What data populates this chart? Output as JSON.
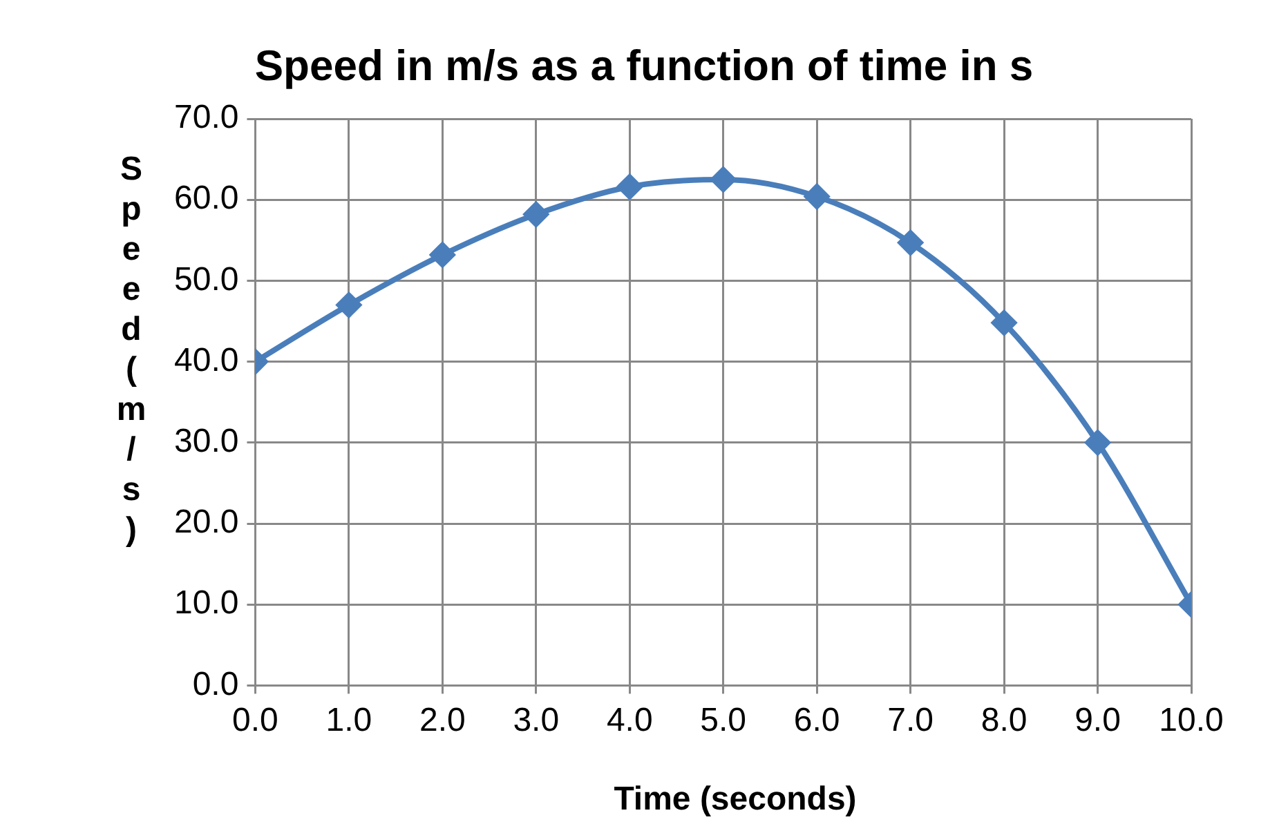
{
  "chart_data": {
    "type": "line",
    "title": "Speed in m/s as a function of time in s",
    "xlabel": "Time (seconds)",
    "ylabel": "Speed (m/s)",
    "x": [
      0,
      1,
      2,
      3,
      4,
      5,
      6,
      7,
      8,
      9,
      10
    ],
    "series": [
      {
        "color": "#4a7ebb",
        "values": [
          40,
          47,
          53.2,
          58.2,
          61.6,
          62.5,
          60.4,
          54.7,
          44.8,
          30,
          10
        ]
      }
    ],
    "xlim": [
      0,
      10
    ],
    "ylim": [
      0,
      70
    ],
    "xticks": [
      {
        "value": 0,
        "label": "0.0"
      },
      {
        "value": 1,
        "label": "1.0"
      },
      {
        "value": 2,
        "label": "2.0"
      },
      {
        "value": 3,
        "label": "3.0"
      },
      {
        "value": 4,
        "label": "4.0"
      },
      {
        "value": 5,
        "label": "5.0"
      },
      {
        "value": 6,
        "label": "6.0"
      },
      {
        "value": 7,
        "label": "7.0"
      },
      {
        "value": 8,
        "label": "8.0"
      },
      {
        "value": 9,
        "label": "9.0"
      },
      {
        "value": 10,
        "label": "10.0"
      }
    ],
    "yticks": [
      {
        "value": 0,
        "label": "0.0"
      },
      {
        "value": 10,
        "label": "10.0"
      },
      {
        "value": 20,
        "label": "20.0"
      },
      {
        "value": 30,
        "label": "30.0"
      },
      {
        "value": 40,
        "label": "40.0"
      },
      {
        "value": 50,
        "label": "50.0"
      },
      {
        "value": 60,
        "label": "60.0"
      },
      {
        "value": 70,
        "label": "70.0"
      }
    ],
    "grid": true,
    "legend": false,
    "marker": "diamond",
    "line_style": "solid"
  }
}
